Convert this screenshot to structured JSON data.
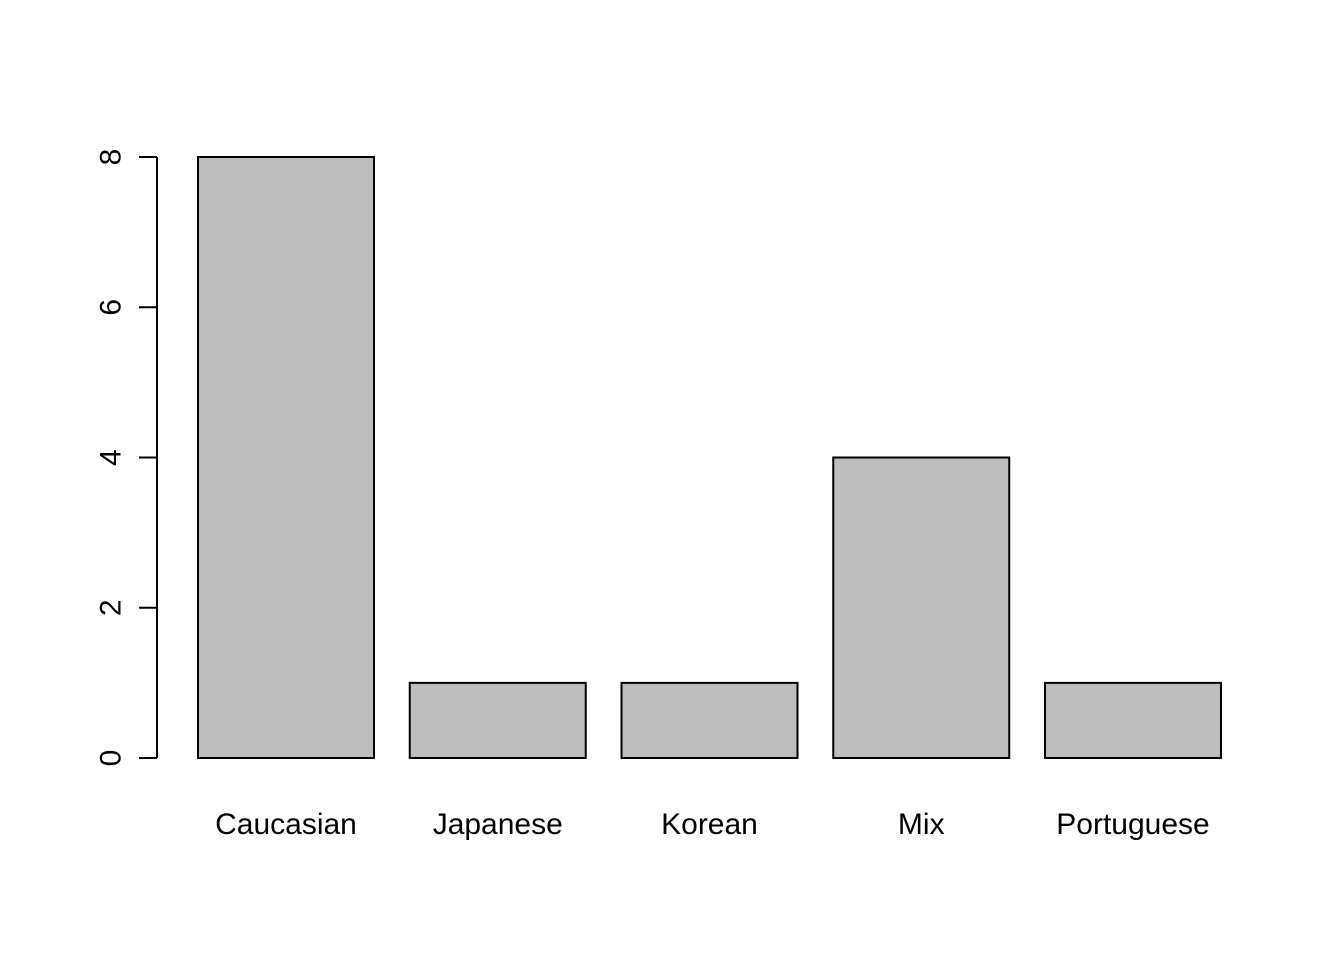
{
  "chart_data": {
    "type": "bar",
    "categories": [
      "Caucasian",
      "Japanese",
      "Korean",
      "Mix",
      "Portuguese"
    ],
    "values": [
      8,
      1,
      1,
      4,
      1
    ],
    "title": "",
    "xlabel": "",
    "ylabel": "",
    "ylim": [
      0,
      8
    ],
    "yticks": [
      0,
      2,
      4,
      6,
      8
    ],
    "grid": false,
    "bar_color": "#bebebe",
    "bar_border_color": "#000000"
  }
}
